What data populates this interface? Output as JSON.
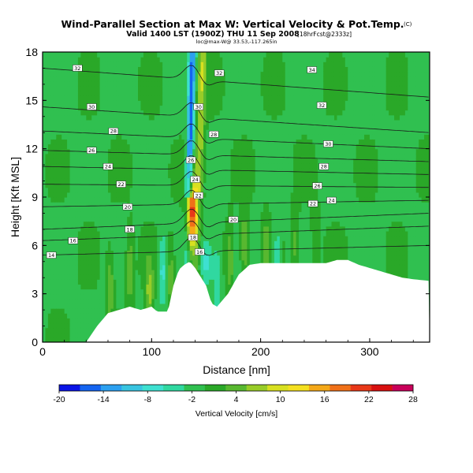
{
  "header": {
    "title": "Wind-Parallel Section at Max W: Vertical Velocity & Pot.Temp.",
    "copyright": "(C)",
    "subtitle": "Valid 1400 LST (1900Z) THU 11 Sep 2008",
    "forecast": "[18hrFcst@2333z]",
    "location": "loc@max-W@ 33.53,-117.265in"
  },
  "chart_data": {
    "type": "heatmap",
    "xlabel": "Distance [nm]",
    "ylabel": "Height [Kft MSL]",
    "xlim": [
      0,
      355
    ],
    "ylim": [
      0,
      18
    ],
    "xticks": [
      0,
      100,
      200,
      300
    ],
    "xtick_labels": [
      "0",
      "100",
      "200",
      "300"
    ],
    "yticks": [
      0,
      3,
      6,
      9,
      12,
      15,
      18
    ],
    "ytick_labels": [
      "0",
      "3",
      "6",
      "9",
      "12",
      "15",
      "18"
    ],
    "colorbar": {
      "label": "Vertical Velocity [cm/s]",
      "tick_labels": [
        "-20",
        "-14",
        "-8",
        "-2",
        "4",
        "10",
        "16",
        "22",
        "28"
      ],
      "bins": [
        -20,
        -17,
        -14,
        -11,
        -8,
        -5,
        -2,
        1,
        4,
        7,
        10,
        13,
        16,
        19,
        22,
        25,
        28
      ],
      "colors": [
        "#0a14e6",
        "#1464f0",
        "#2ca0f0",
        "#38c4e0",
        "#3ee0d0",
        "#30d8a0",
        "#30c050",
        "#2aa828",
        "#58b830",
        "#98cc28",
        "#d8e020",
        "#f4e020",
        "#f4a818",
        "#f07018",
        "#e83818",
        "#d81010",
        "#c8005a"
      ]
    },
    "terrain": {
      "x": [
        0,
        40,
        50,
        60,
        70,
        80,
        90,
        100,
        105,
        115,
        120,
        125,
        130,
        135,
        140,
        150,
        155,
        160,
        165,
        170,
        175,
        180,
        185,
        190,
        200,
        260,
        270,
        280,
        290,
        300,
        310,
        320,
        330,
        340,
        355
      ],
      "height": [
        0,
        0,
        1.0,
        1.8,
        2.0,
        2.2,
        2.0,
        2.2,
        1.9,
        1.9,
        3.5,
        4.5,
        4.8,
        5.0,
        4.6,
        3.5,
        2.4,
        2.2,
        2.6,
        3.0,
        3.6,
        4.2,
        4.5,
        4.8,
        4.9,
        4.9,
        5.1,
        5.1,
        4.8,
        4.6,
        4.4,
        4.2,
        4.0,
        3.9,
        3.8
      ]
    },
    "updraft": {
      "x_center": 137,
      "peak_w": 24,
      "peak_height": 8.0
    },
    "isentropes": [
      {
        "label": "32",
        "label_x": 32,
        "label_y": 17.0,
        "y_left": 17.0,
        "y_right": 15.2
      },
      {
        "label": "30",
        "label_x": 45,
        "label_y": 14.6,
        "y_left": 14.6,
        "y_right": 13.0
      },
      {
        "label": "28",
        "label_x": 65,
        "label_y": 13.1,
        "y_left": 13.1,
        "y_right": 12.0
      },
      {
        "label": "26",
        "label_x": 45,
        "label_y": 11.9,
        "y_left": 11.9,
        "y_right": 11.2
      },
      {
        "label": "24",
        "label_x": 60,
        "label_y": 10.9,
        "y_left": 10.9,
        "y_right": 10.4
      },
      {
        "label": "22",
        "label_x": 72,
        "label_y": 9.8,
        "y_left": 9.8,
        "y_right": 9.6
      },
      {
        "label": "20",
        "label_x": 78,
        "label_y": 8.4,
        "y_left": 8.4,
        "y_right": 8.8
      },
      {
        "label": "18",
        "label_x": 80,
        "label_y": 7.0,
        "y_left": 7.0,
        "y_right": 8.0
      },
      {
        "label": "16",
        "label_x": 28,
        "label_y": 6.3,
        "y_left": 6.3,
        "y_right": 7.2
      },
      {
        "label": "14",
        "label_x": 8,
        "label_y": 5.4,
        "y_left": 5.4,
        "y_right": 6.0
      }
    ],
    "contour_labels": [
      {
        "text": "32",
        "x": 162,
        "y": 16.7
      },
      {
        "text": "30",
        "x": 143,
        "y": 14.6
      },
      {
        "text": "28",
        "x": 157,
        "y": 12.9
      },
      {
        "text": "26",
        "x": 136,
        "y": 11.3
      },
      {
        "text": "24",
        "x": 140,
        "y": 10.1
      },
      {
        "text": "22",
        "x": 143,
        "y": 9.1
      },
      {
        "text": "18",
        "x": 138,
        "y": 6.5
      },
      {
        "text": "16",
        "x": 144,
        "y": 5.6
      },
      {
        "text": "20",
        "x": 175,
        "y": 7.6
      },
      {
        "text": "34",
        "x": 247,
        "y": 16.9
      },
      {
        "text": "32",
        "x": 256,
        "y": 14.7
      },
      {
        "text": "30",
        "x": 262,
        "y": 12.3
      },
      {
        "text": "28",
        "x": 258,
        "y": 10.9
      },
      {
        "text": "26",
        "x": 252,
        "y": 9.7
      },
      {
        "text": "22",
        "x": 248,
        "y": 8.6
      },
      {
        "text": "24",
        "x": 265,
        "y": 8.8
      }
    ]
  }
}
